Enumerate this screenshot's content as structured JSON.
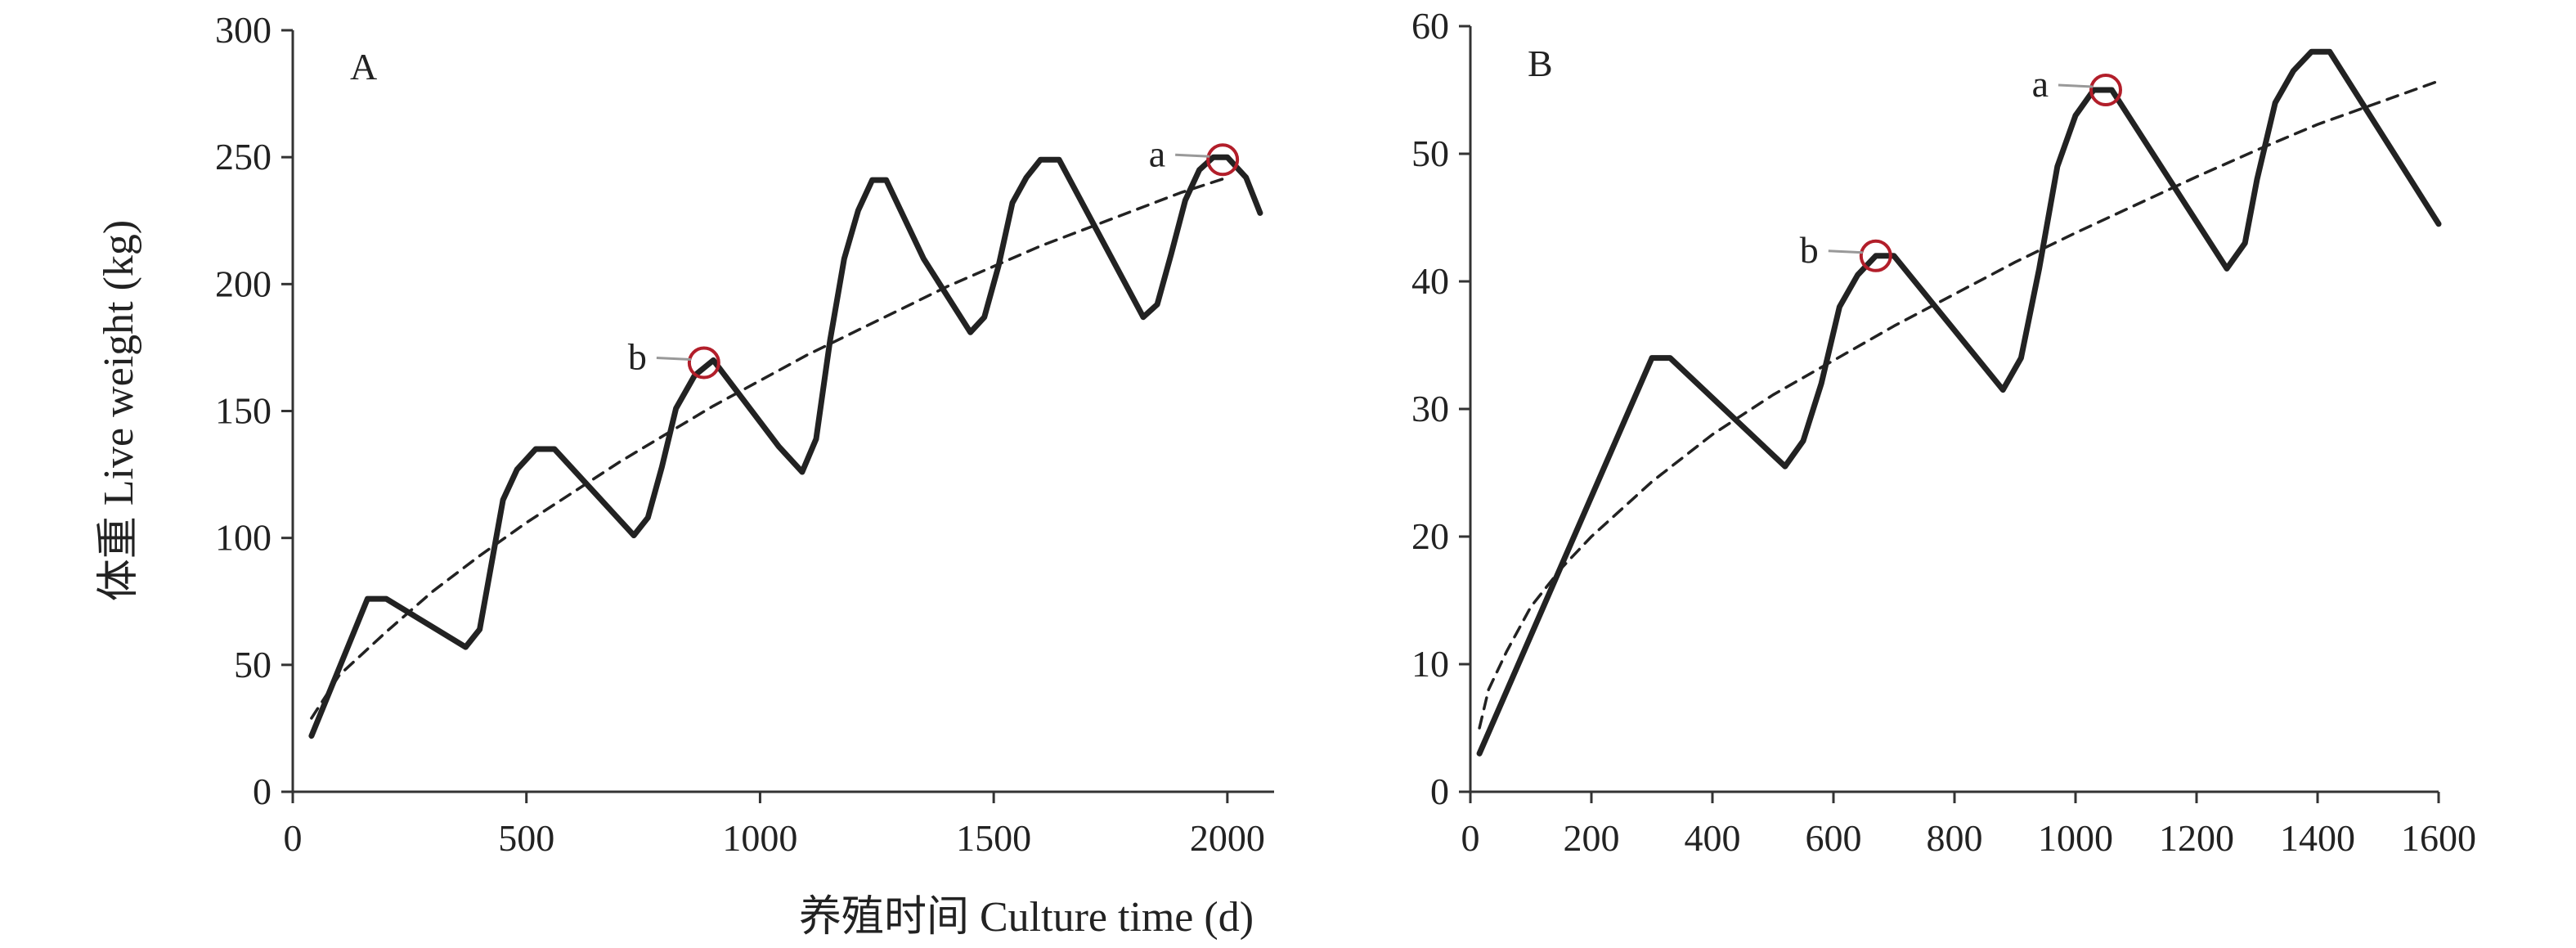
{
  "shared_xlabel": "养殖时间 Culture time (d)",
  "colors": {
    "line": "#222222",
    "fit": "#222222",
    "marker": "#b21e2a",
    "leader": "#999999"
  },
  "chart_data": [
    {
      "type": "line",
      "panel": "A",
      "ylabel": "体重 Live weight (kg)",
      "xlim": [
        0,
        2100
      ],
      "ylim": [
        0,
        300
      ],
      "xticks": [
        0,
        500,
        1000,
        1500,
        2000
      ],
      "yticks": [
        0,
        50,
        100,
        150,
        200,
        250,
        300
      ],
      "series": [
        {
          "style": "solid",
          "x": [
            40,
            160,
            200,
            370,
            400,
            450,
            480,
            520,
            560,
            650,
            730,
            760,
            790,
            820,
            860,
            900,
            1040,
            1090,
            1120,
            1150,
            1180,
            1210,
            1240,
            1270,
            1350,
            1450,
            1480,
            1510,
            1540,
            1570,
            1600,
            1640,
            1820,
            1850,
            1880,
            1910,
            1940,
            1970,
            2000,
            2040,
            2070
          ],
          "y": [
            22,
            76,
            76,
            57,
            64,
            115,
            127,
            135,
            135,
            117,
            101,
            108,
            128,
            151,
            164,
            170,
            136,
            126,
            139,
            178,
            210,
            229,
            241,
            241,
            210,
            181,
            187,
            207,
            232,
            242,
            249,
            249,
            187,
            192,
            212,
            233,
            245,
            250,
            250,
            242,
            228
          ]
        },
        {
          "style": "dashed",
          "x": [
            40,
            100,
            200,
            300,
            400,
            500,
            600,
            700,
            800,
            900,
            1000,
            1100,
            1200,
            1300,
            1400,
            1500,
            1600,
            1700,
            1800,
            1900,
            2000
          ],
          "y": [
            29,
            46,
            63,
            79,
            93,
            106,
            118,
            130,
            141,
            152,
            162,
            172,
            181,
            190,
            199,
            207,
            215,
            222,
            229,
            236,
            242
          ]
        }
      ],
      "markers": [
        {
          "label": "a",
          "x": 1990,
          "y": 249
        },
        {
          "label": "b",
          "x": 880,
          "y": 169
        }
      ]
    },
    {
      "type": "line",
      "panel": "B",
      "ylabel": "",
      "xlim": [
        0,
        1600
      ],
      "ylim": [
        0,
        60
      ],
      "xticks": [
        0,
        200,
        400,
        600,
        800,
        1000,
        1200,
        1400,
        1600
      ],
      "yticks": [
        0,
        10,
        20,
        30,
        40,
        50,
        60
      ],
      "series": [
        {
          "style": "solid",
          "x": [
            15,
            300,
            330,
            520,
            550,
            580,
            610,
            640,
            670,
            700,
            880,
            910,
            940,
            970,
            1000,
            1030,
            1060,
            1250,
            1280,
            1300,
            1330,
            1360,
            1390,
            1420,
            1600
          ],
          "y": [
            3,
            34,
            34,
            25.5,
            27.5,
            32,
            38,
            40.5,
            42,
            42,
            31.5,
            34,
            41,
            49,
            53,
            55,
            55,
            41,
            43,
            48,
            54,
            56.5,
            58,
            58,
            44.5
          ]
        },
        {
          "style": "dashed",
          "x": [
            15,
            30,
            60,
            100,
            150,
            200,
            300,
            400,
            500,
            600,
            700,
            800,
            900,
            1000,
            1100,
            1200,
            1300,
            1400,
            1500,
            1600
          ],
          "y": [
            5,
            8,
            11,
            14.5,
            17.5,
            20,
            24.3,
            28,
            31.1,
            33.8,
            36.5,
            39,
            41.5,
            43.8,
            46,
            48.2,
            50.3,
            52.3,
            54,
            55.7
          ]
        }
      ],
      "markers": [
        {
          "label": "a",
          "x": 1050,
          "y": 55
        },
        {
          "label": "b",
          "x": 670,
          "y": 42
        }
      ]
    }
  ]
}
